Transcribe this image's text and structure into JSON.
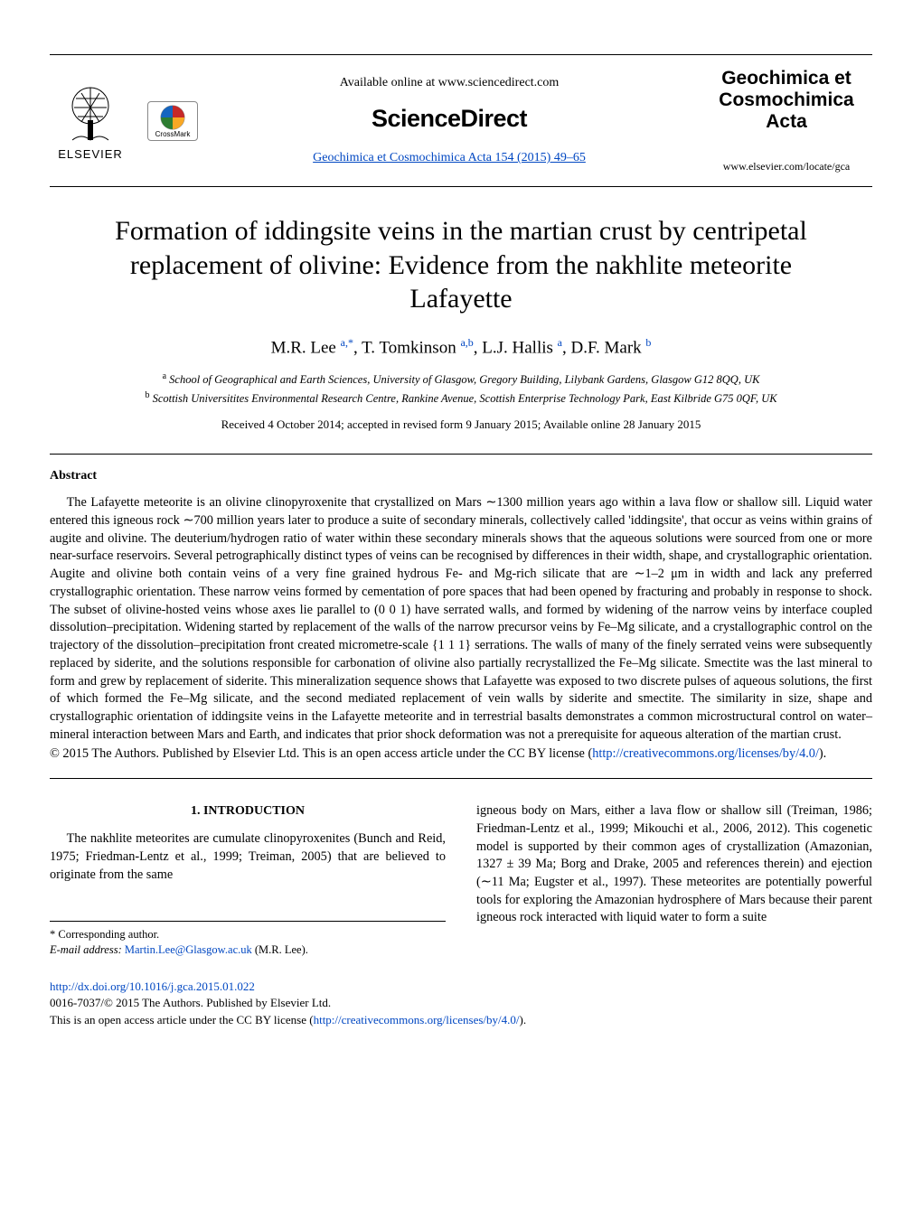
{
  "header": {
    "available_line": "Available online at www.sciencedirect.com",
    "sciencedirect": "ScienceDirect",
    "journal_ref": "Geochimica et Cosmochimica Acta 154 (2015) 49–65",
    "elsevier_label": "ELSEVIER",
    "crossmark_label": "CrossMark",
    "gca_title_1": "Geochimica et",
    "gca_title_2": "Cosmochimica",
    "gca_title_3": "Acta",
    "gca_site": "www.elsevier.com/locate/gca"
  },
  "title": "Formation of iddingsite veins in the martian crust by centripetal replacement of olivine: Evidence from the nakhlite meteorite Lafayette",
  "authors_html": "M.R. Lee <sup>a,*</sup>, T. Tomkinson <sup>a,b</sup>, L.J. Hallis <sup>a</sup>, D.F. Mark <sup>b</sup>",
  "affiliations": {
    "a": "School of Geographical and Earth Sciences, University of Glasgow, Gregory Building, Lilybank Gardens, Glasgow G12 8QQ, UK",
    "b": "Scottish Universitites Environmental Research Centre, Rankine Avenue, Scottish Enterprise Technology Park, East Kilbride G75 0QF, UK"
  },
  "received": "Received 4 October 2014; accepted in revised form 9 January 2015; Available online 28 January 2015",
  "abstract_heading": "Abstract",
  "abstract_body": "The Lafayette meteorite is an olivine clinopyroxenite that crystallized on Mars ∼1300 million years ago within a lava flow or shallow sill. Liquid water entered this igneous rock ∼700 million years later to produce a suite of secondary minerals, collectively called 'iddingsite', that occur as veins within grains of augite and olivine. The deuterium/hydrogen ratio of water within these secondary minerals shows that the aqueous solutions were sourced from one or more near-surface reservoirs. Several petrographically distinct types of veins can be recognised by differences in their width, shape, and crystallographic orientation. Augite and olivine both contain veins of a very fine grained hydrous Fe- and Mg-rich silicate that are ∼1–2 μm in width and lack any preferred crystallographic orientation. These narrow veins formed by cementation of pore spaces that had been opened by fracturing and probably in response to shock. The subset of olivine-hosted veins whose axes lie parallel to (0 0 1) have serrated walls, and formed by widening of the narrow veins by interface coupled dissolution–precipitation. Widening started by replacement of the walls of the narrow precursor veins by Fe–Mg silicate, and a crystallographic control on the trajectory of the dissolution–precipitation front created micrometre-scale {1 1 1} serrations. The walls of many of the finely serrated veins were subsequently replaced by siderite, and the solutions responsible for carbonation of olivine also partially recrystallized the Fe–Mg silicate. Smectite was the last mineral to form and grew by replacement of siderite. This mineralization sequence shows that Lafayette was exposed to two discrete pulses of aqueous solutions, the first of which formed the Fe–Mg silicate, and the second mediated replacement of vein walls by siderite and smectite. The similarity in size, shape and crystallographic orientation of iddingsite veins in the Lafayette meteorite and in terrestrial basalts demonstrates a common microstructural control on water–mineral interaction between Mars and Earth, and indicates that prior shock deformation was not a prerequisite for aqueous alteration of the martian crust.",
  "license_text_pre": "© 2015 The Authors. Published by Elsevier Ltd. This is an open access article under the CC BY license (",
  "license_url": "http://creativecommons.org/licenses/by/4.0/",
  "license_text_post": ").",
  "section1_heading": "1. INTRODUCTION",
  "intro_left": "The nakhlite meteorites are cumulate clinopyroxenites (Bunch and Reid, 1975; Friedman-Lentz et al., 1999; Treiman, 2005) that are believed to originate from the same",
  "intro_right": "igneous body on Mars, either a lava flow or shallow sill (Treiman, 1986; Friedman-Lentz et al., 1999; Mikouchi et al., 2006, 2012). This cogenetic model is supported by their common ages of crystallization (Amazonian, 1327 ± 39 Ma; Borg and Drake, 2005 and references therein) and ejection (∼11 Ma; Eugster et al., 1997). These meteorites are potentially powerful tools for exploring the Amazonian hydrosphere of Mars because their parent igneous rock interacted with liquid water to form a suite",
  "corresponding": {
    "marker": "* Corresponding author.",
    "email_label": "E-mail address:",
    "email": "Martin.Lee@Glasgow.ac.uk",
    "name": "(M.R. Lee)."
  },
  "footer": {
    "doi": "http://dx.doi.org/10.1016/j.gca.2015.01.022",
    "line2": "0016-7037/© 2015 The Authors. Published by Elsevier Ltd.",
    "line3_pre": "This is an open access article under the CC BY license (",
    "line3_url": "http://creativecommons.org/licenses/by/4.0/",
    "line3_post": ")."
  },
  "colors": {
    "link": "#0047c2",
    "text": "#000000",
    "background": "#ffffff",
    "crossmark_red": "#c62828",
    "crossmark_yellow": "#f9a825",
    "crossmark_blue": "#1565c0",
    "crossmark_green": "#2e7d32"
  }
}
